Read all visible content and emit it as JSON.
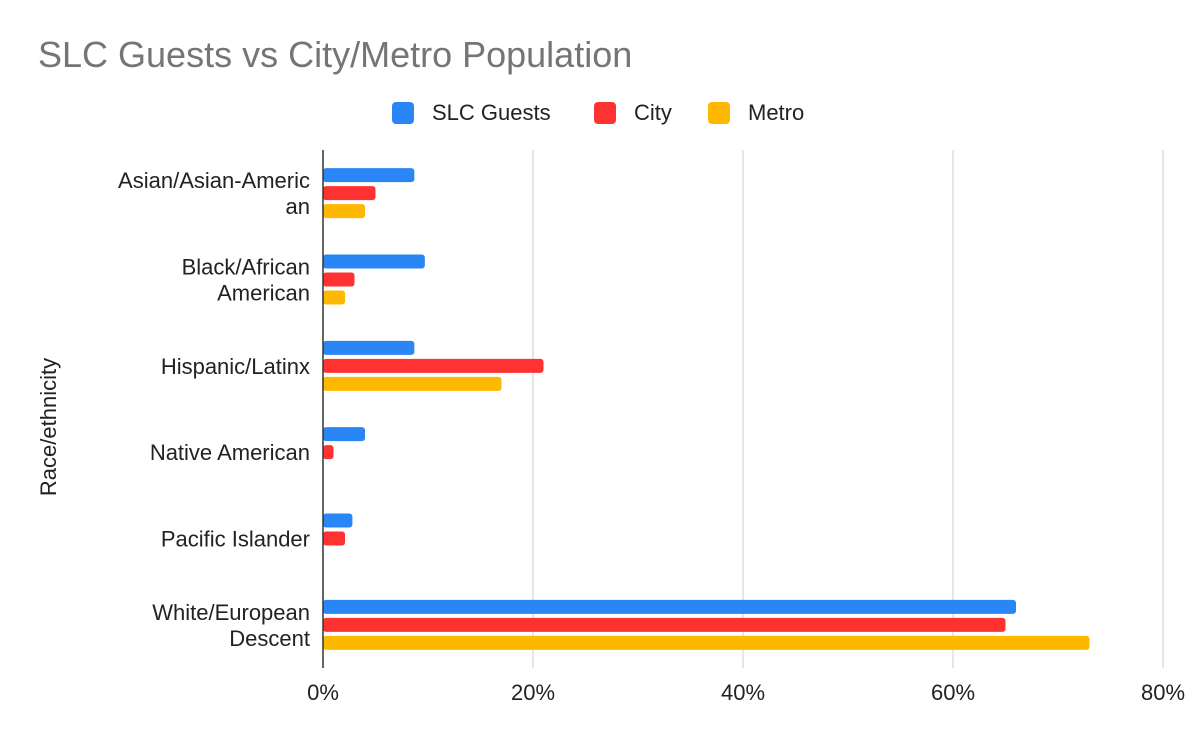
{
  "chart_data": {
    "type": "bar",
    "orientation": "horizontal",
    "title": "SLC Guests vs City/Metro Population",
    "xlabel": "",
    "ylabel": "Race/ethnicity",
    "categories": [
      [
        "Asian/Asian-Americ",
        "an"
      ],
      [
        "Black/African",
        "American"
      ],
      [
        "Hispanic/Latinx"
      ],
      [
        "Native American"
      ],
      [
        "Pacific Islander"
      ],
      [
        "White/European",
        "Descent"
      ]
    ],
    "series": [
      {
        "name": "SLC Guests",
        "color": "#2a85f5",
        "values": [
          0.087,
          0.097,
          0.087,
          0.04,
          0.028,
          0.66
        ]
      },
      {
        "name": "City",
        "color": "#ff3232",
        "values": [
          0.05,
          0.03,
          0.21,
          0.01,
          0.021,
          0.65
        ]
      },
      {
        "name": "Metro",
        "color": "#ffb800",
        "values": [
          0.04,
          0.021,
          0.17,
          0.0,
          0.0,
          0.73
        ]
      }
    ],
    "xlim": [
      0,
      0.8
    ],
    "xticks": [
      0,
      0.2,
      0.4,
      0.6,
      0.8
    ],
    "xtick_labels": [
      "0%",
      "20%",
      "40%",
      "60%",
      "80%"
    ],
    "grid": true,
    "legend_position": "top"
  }
}
